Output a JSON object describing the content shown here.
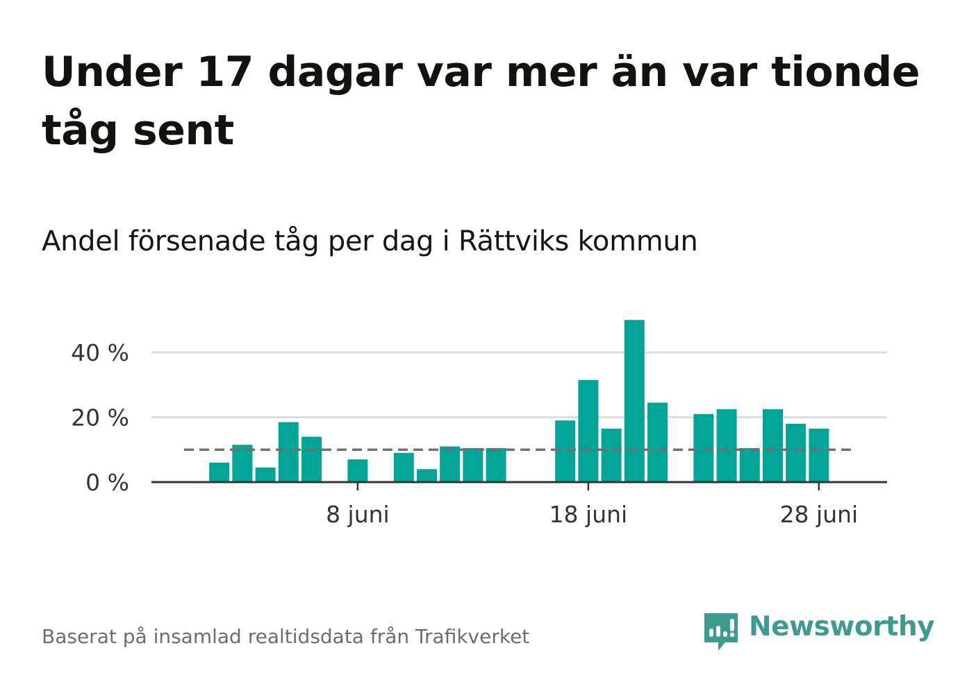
{
  "title": "Under 17 dagar var mer än var tionde tåg sent",
  "subtitle": "Andel försenade tåg per dag i Rättviks kommun",
  "footer": "Baserat på insamlad realtidsdata från Trafikverket",
  "brand": {
    "name": "Newsworthy",
    "color": "#3d9b8f",
    "icon": "newsworthy-chart-bubble-icon"
  },
  "colors": {
    "bar": "#00a598",
    "grid": "#dddddd",
    "axis": "#333333",
    "reference": "#707070"
  },
  "chart_data": {
    "type": "bar",
    "title": "Under 17 dagar var mer än var tionde tåg sent",
    "subtitle": "Andel försenade tåg per dag i Rättviks kommun",
    "ylim": [
      0,
      50
    ],
    "yticks": [
      0,
      20,
      40
    ],
    "ytick_labels": [
      "0 %",
      "20 %",
      "40 %"
    ],
    "x_dates": [
      "2023-06-01",
      "2023-06-02",
      "2023-06-03",
      "2023-06-04",
      "2023-06-05",
      "2023-06-06",
      "2023-06-07",
      "2023-06-08",
      "2023-06-09",
      "2023-06-10",
      "2023-06-11",
      "2023-06-12",
      "2023-06-13",
      "2023-06-14",
      "2023-06-15",
      "2023-06-16",
      "2023-06-17",
      "2023-06-18",
      "2023-06-19",
      "2023-06-20",
      "2023-06-21",
      "2023-06-22",
      "2023-06-23",
      "2023-06-24",
      "2023-06-25",
      "2023-06-26",
      "2023-06-27",
      "2023-06-28",
      "2023-06-29",
      "2023-06-30"
    ],
    "values": [
      null,
      6,
      11.5,
      4.5,
      18.5,
      14,
      null,
      7,
      null,
      9,
      4,
      11,
      10.5,
      10.5,
      null,
      null,
      19,
      31.5,
      16.5,
      50,
      24.5,
      null,
      21,
      22.5,
      10.5,
      22.5,
      18,
      16.5,
      null,
      null
    ],
    "xticks": [
      "2023-06-08",
      "2023-06-18",
      "2023-06-28"
    ],
    "xtick_labels": [
      "8 juni",
      "18 juni",
      "28 juni"
    ],
    "reference_line": 10,
    "grid": true
  }
}
